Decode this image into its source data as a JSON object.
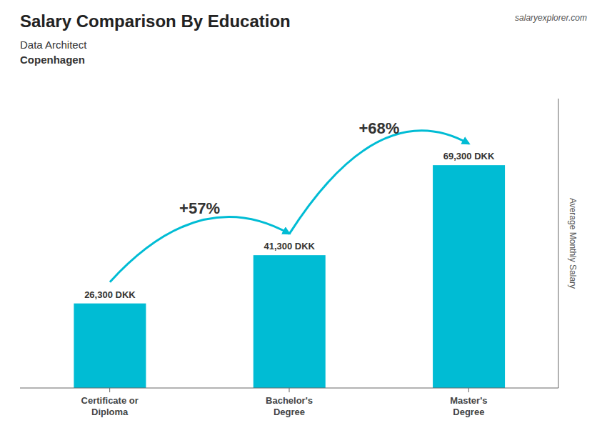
{
  "chart_data": {
    "type": "bar",
    "title": "Salary Comparison By Education",
    "subtitle": [
      "Data Architect",
      "Copenhagen"
    ],
    "categories": [
      "Certificate or\nDiploma",
      "Bachelor's\nDegree",
      "Master's\nDegree"
    ],
    "values": [
      26300,
      41300,
      69300
    ],
    "value_labels": [
      "26,300 DKK",
      "41,300 DKK",
      "69,300 DKK"
    ],
    "data_labels": true,
    "color": "#00bcd4",
    "y_label": "Average Monthly Salary",
    "ylim": [
      0,
      90000
    ],
    "tick_labels": false,
    "grid": false,
    "annotations": [
      "+57%",
      "+68%",
      "salaryexplorer.com"
    ]
  }
}
